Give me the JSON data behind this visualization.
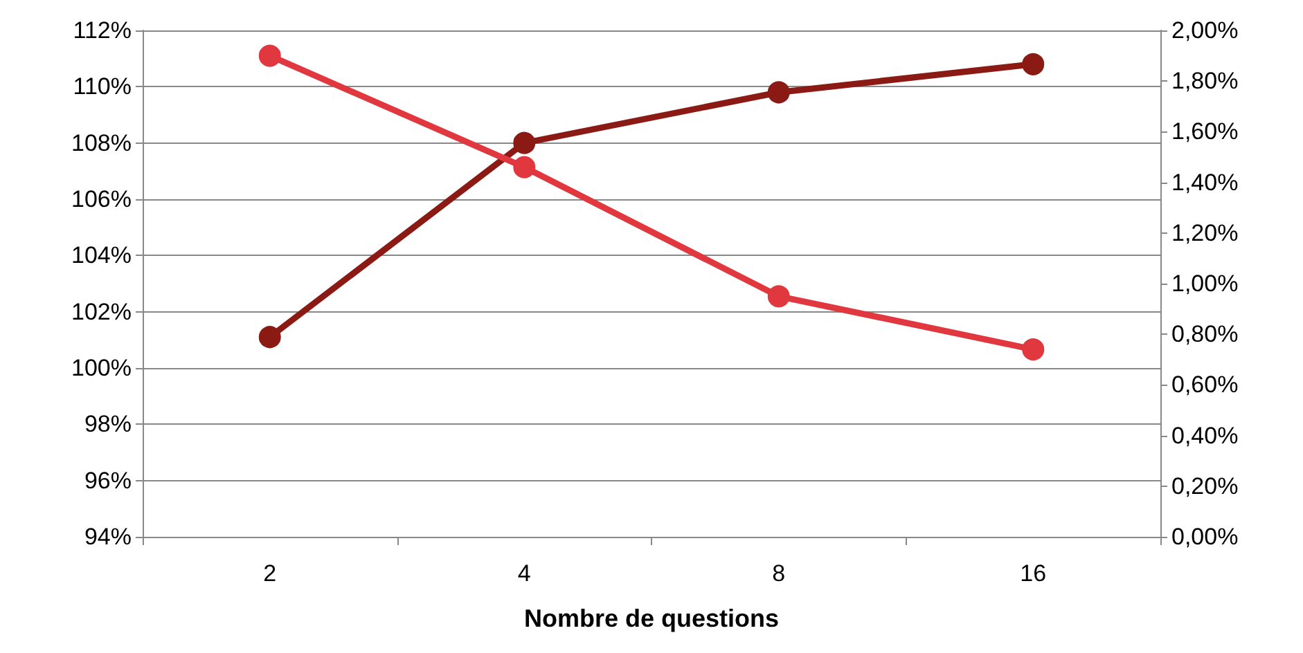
{
  "chart_data": {
    "type": "line",
    "xlabel": "Nombre de questions",
    "categories": [
      "2",
      "4",
      "8",
      "16"
    ],
    "series": [
      {
        "color": "#8b1a14",
        "values": [
          101.1,
          108.0,
          109.8,
          110.8
        ]
      },
      {
        "color": "#e0383e",
        "values": [
          1.9,
          1.46,
          0.95,
          0.74
        ],
        "axis": "y2"
      }
    ],
    "ylim": [
      94,
      112
    ],
    "yticks": [
      {
        "value": 94,
        "label": "94%"
      },
      {
        "value": 96,
        "label": "96%"
      },
      {
        "value": 98,
        "label": "98%"
      },
      {
        "value": 100,
        "label": "100%"
      },
      {
        "value": 102,
        "label": "102%"
      },
      {
        "value": 104,
        "label": "104%"
      },
      {
        "value": 106,
        "label": "106%"
      },
      {
        "value": 108,
        "label": "108%"
      },
      {
        "value": 110,
        "label": "110%"
      },
      {
        "value": 112,
        "label": "112%"
      }
    ],
    "y2lim": [
      0,
      2
    ],
    "y2ticks": [
      {
        "value": 0,
        "label": "0,00%"
      },
      {
        "value": 0.2,
        "label": "0,20%"
      },
      {
        "value": 0.4,
        "label": "0,40%"
      },
      {
        "value": 0.6,
        "label": "0,60%"
      },
      {
        "value": 0.8,
        "label": "0,80%"
      },
      {
        "value": 1,
        "label": "1,00%"
      },
      {
        "value": 1.2,
        "label": "1,20%"
      },
      {
        "value": 1.4,
        "label": "1,40%"
      },
      {
        "value": 1.6,
        "label": "1,60%"
      },
      {
        "value": 1.8,
        "label": "1,80%"
      },
      {
        "value": 2,
        "label": "2,00%"
      }
    ],
    "grid": "y",
    "marker": "circle",
    "line_style": "solid"
  }
}
